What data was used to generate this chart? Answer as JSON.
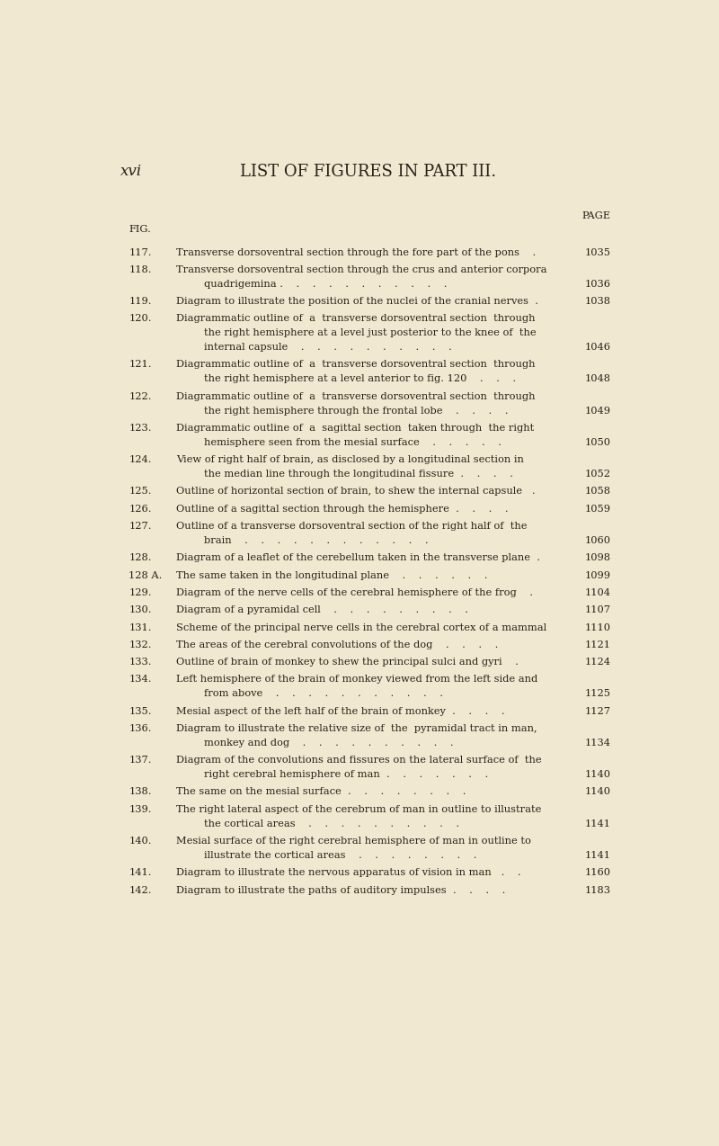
{
  "bg_color": "#f0e8d0",
  "text_color": "#2a2018",
  "page_header_left": "xvi",
  "page_header_center": "LIST OF FIGURES IN PART III.",
  "col_page_label": "PAGE",
  "col_fig_label": "FIG.",
  "entries": [
    {
      "fig": "117.",
      "lines": [
        "Transverse dorsoventral section through the fore part of the pons    ."
      ],
      "page": "1035"
    },
    {
      "fig": "118.",
      "lines": [
        "Transverse dorsoventral section through the crus and anterior corpora",
        "quadrigemina .    .    .    .    .    .    .    .    .    .    ."
      ],
      "page": "1036"
    },
    {
      "fig": "119.",
      "lines": [
        "Diagram to illustrate the position of the nuclei of the cranial nerves  ."
      ],
      "page": "1038"
    },
    {
      "fig": "120.",
      "lines": [
        "Diagrammatic outline of  a  transverse dorsoventral section  through",
        "the right hemisphere at a level just posterior to the knee of  the",
        "internal capsule    .    .    .    .    .    .    .    .    .    ."
      ],
      "page": "1046"
    },
    {
      "fig": "121.",
      "lines": [
        "Diagrammatic outline of  a  transverse dorsoventral section  through",
        "the right hemisphere at a level anterior to fig. 120    .    .    ."
      ],
      "page": "1048"
    },
    {
      "fig": "122.",
      "lines": [
        "Diagrammatic outline of  a  transverse dorsoventral section  through",
        "the right hemisphere through the frontal lobe    .    .    .    ."
      ],
      "page": "1049"
    },
    {
      "fig": "123.",
      "lines": [
        "Diagrammatic outline of  a  sagittal section  taken through  the right",
        "hemisphere seen from the mesial surface    .    .    .    .    ."
      ],
      "page": "1050"
    },
    {
      "fig": "124.",
      "lines": [
        "View of right half of brain, as disclosed by a longitudinal section in",
        "the median line through the longitudinal fissure  .    .    .    ."
      ],
      "page": "1052"
    },
    {
      "fig": "125.",
      "lines": [
        "Outline of horizontal section of brain, to shew the internal capsule   ."
      ],
      "page": "1058"
    },
    {
      "fig": "126.",
      "lines": [
        "Outline of a sagittal section through the hemisphere  .    .    .    ."
      ],
      "page": "1059"
    },
    {
      "fig": "127.",
      "lines": [
        "Outline of a transverse dorsoventral section of the right half of  the",
        "brain    .    .    .    .    .    .    .    .    .    .    .    ."
      ],
      "page": "1060"
    },
    {
      "fig": "128.",
      "lines": [
        "Diagram of a leaflet of the cerebellum taken in the transverse plane  ."
      ],
      "page": "1098"
    },
    {
      "fig": "128 A.",
      "lines": [
        "The same taken in the longitudinal plane    .    .    .    .    .    ."
      ],
      "page": "1099"
    },
    {
      "fig": "129.",
      "lines": [
        "Diagram of the nerve cells of the cerebral hemisphere of the frog    ."
      ],
      "page": "1104"
    },
    {
      "fig": "130.",
      "lines": [
        "Diagram of a pyramidal cell    .    .    .    .    .    .    .    .    ."
      ],
      "page": "1107"
    },
    {
      "fig": "131.",
      "lines": [
        "Scheme of the principal nerve cells in the cerebral cortex of a mammal"
      ],
      "page": "1110"
    },
    {
      "fig": "132.",
      "lines": [
        "The areas of the cerebral convolutions of the dog    .    .    .    ."
      ],
      "page": "1121"
    },
    {
      "fig": "133.",
      "lines": [
        "Outline of brain of monkey to shew the principal sulci and gyri    ."
      ],
      "page": "1124"
    },
    {
      "fig": "134.",
      "lines": [
        "Left hemisphere of the brain of monkey viewed from the left side and",
        "from above    .    .    .    .    .    .    .    .    .    .    ."
      ],
      "page": "1125"
    },
    {
      "fig": "135.",
      "lines": [
        "Mesial aspect of the left half of the brain of monkey  .    .    .    ."
      ],
      "page": "1127"
    },
    {
      "fig": "136.",
      "lines": [
        "Diagram to illustrate the relative size of  the  pyramidal tract in man,",
        "monkey and dog    .    .    .    .    .    .    .    .    .    ."
      ],
      "page": "1134"
    },
    {
      "fig": "137.",
      "lines": [
        "Diagram of the convolutions and fissures on the lateral surface of  the",
        "right cerebral hemisphere of man  .    .    .    .    .    .    ."
      ],
      "page": "1140"
    },
    {
      "fig": "138.",
      "lines": [
        "The same on the mesial surface  .    .    .    .    .    .    .    ."
      ],
      "page": "1140"
    },
    {
      "fig": "139.",
      "lines": [
        "The right lateral aspect of the cerebrum of man in outline to illustrate",
        "the cortical areas    .    .    .    .    .    .    .    .    .    ."
      ],
      "page": "1141"
    },
    {
      "fig": "140.",
      "lines": [
        "Mesial surface of the right cerebral hemisphere of man in outline to",
        "illustrate the cortical areas    .    .    .    .    .    .    .    ."
      ],
      "page": "1141"
    },
    {
      "fig": "141.",
      "lines": [
        "Diagram to illustrate the nervous apparatus of vision in man   .    ."
      ],
      "page": "1160"
    },
    {
      "fig": "142.",
      "lines": [
        "Diagram to illustrate the paths of auditory impulses  .    .    .    ."
      ],
      "page": "1183"
    }
  ]
}
